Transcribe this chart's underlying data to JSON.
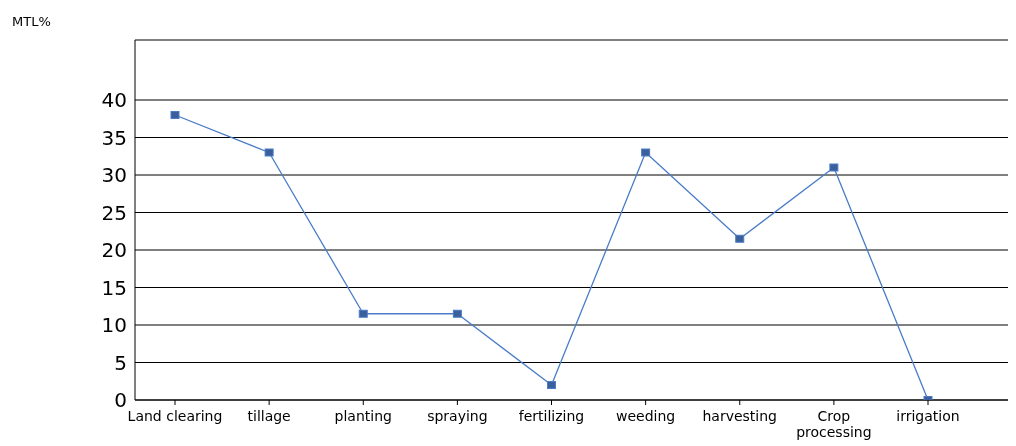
{
  "chart_data": {
    "type": "line",
    "ylabel": "MTL%",
    "categories": [
      "Land clearing",
      "tillage",
      "planting",
      "spraying",
      "fertilizing",
      "weeding",
      "harvesting",
      "Crop processing",
      "irrigation"
    ],
    "series": [
      {
        "color": "#4a7cc8",
        "values": [
          38,
          33,
          11.5,
          11.5,
          2,
          33,
          21.5,
          31,
          0
        ]
      }
    ],
    "ylim": [
      0,
      48
    ],
    "yticks": [
      0,
      5,
      10,
      15,
      20,
      25,
      30,
      35,
      40
    ],
    "grid": "y",
    "legend": false,
    "marker": "square",
    "line_style": "solid"
  }
}
